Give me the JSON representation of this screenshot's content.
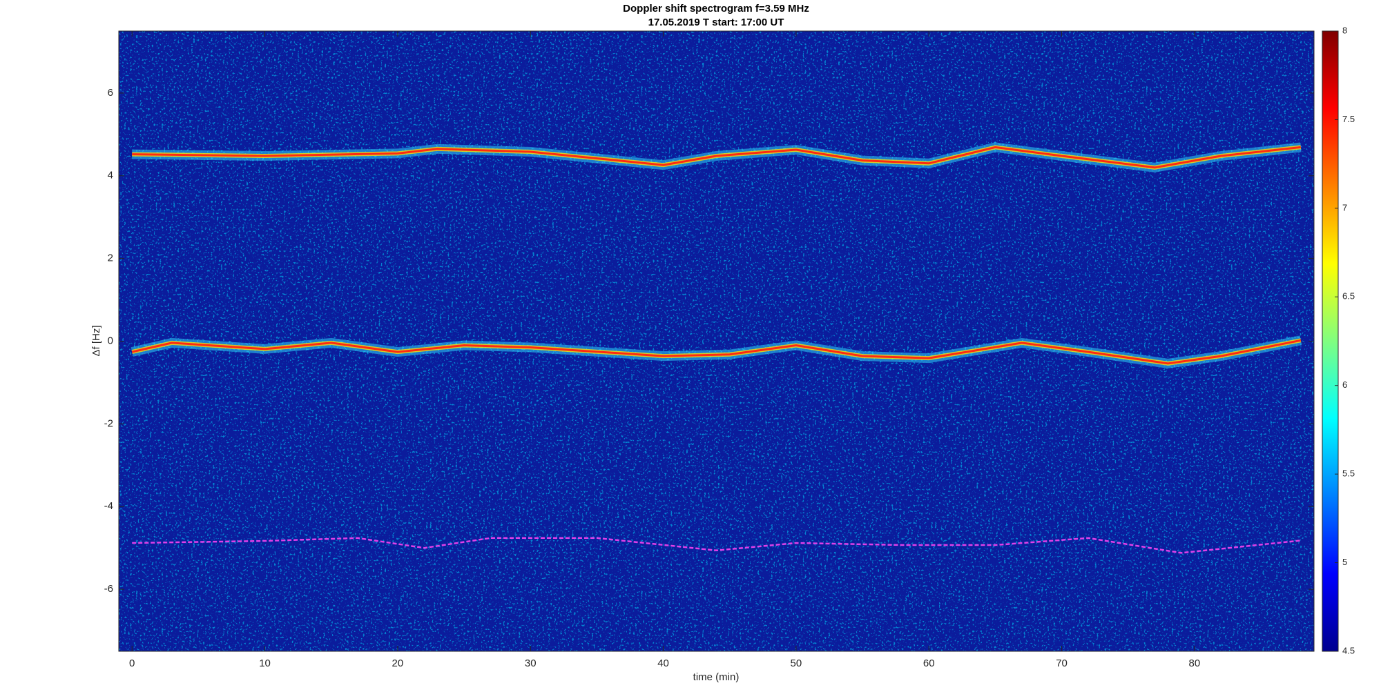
{
  "chart_data": {
    "type": "spectrogram",
    "title": "Doppler shift spectrogram f=3.59 MHz",
    "subtitle": "17.05.2019   T start: 17:00 UT",
    "x_label": "time (min)",
    "y_label": "Δf [Hz]",
    "xlim": [
      -1,
      89
    ],
    "xticks": [
      0,
      10,
      20,
      30,
      40,
      50,
      60,
      70,
      80
    ],
    "ylim": [
      -7.5,
      7.5
    ],
    "yticks": [
      -6,
      -4,
      -2,
      0,
      2,
      4,
      6
    ],
    "background": "#0b1c9c",
    "series": [
      {
        "color": "#ff2a10",
        "x": [
          0,
          10,
          20,
          23,
          30,
          40,
          44,
          50,
          55,
          60,
          65,
          70,
          77,
          82,
          88
        ],
        "values": [
          4.52,
          4.48,
          4.54,
          4.65,
          4.58,
          4.26,
          4.48,
          4.63,
          4.37,
          4.3,
          4.69,
          4.48,
          4.2,
          4.48,
          4.69
        ]
      },
      {
        "color": "#ff2a10",
        "x": [
          0,
          3,
          10,
          15,
          20,
          25,
          30,
          40,
          45,
          50,
          55,
          60,
          67,
          72,
          78,
          82,
          88
        ],
        "values": [
          -0.26,
          -0.04,
          -0.19,
          -0.04,
          -0.26,
          -0.1,
          -0.15,
          -0.36,
          -0.32,
          -0.1,
          -0.36,
          -0.41,
          -0.04,
          -0.26,
          -0.54,
          -0.36,
          0.02
        ]
      },
      {
        "color": "#e040e8",
        "dashed": true,
        "x": [
          0,
          10,
          17,
          22,
          27,
          35,
          44,
          50,
          58,
          65,
          72,
          79,
          88
        ],
        "values": [
          -4.88,
          -4.83,
          -4.76,
          -5.0,
          -4.76,
          -4.76,
          -5.06,
          -4.88,
          -4.93,
          -4.93,
          -4.76,
          -5.12,
          -4.82
        ]
      }
    ],
    "colorbar": {
      "lim": [
        4.5,
        8
      ],
      "ticks": [
        4.5,
        5,
        5.5,
        6,
        6.5,
        7,
        7.5,
        8
      ],
      "colors": [
        "#00008f",
        "#0000ff",
        "#0080ff",
        "#00ffff",
        "#80ff80",
        "#ffff00",
        "#ff8000",
        "#ff0000",
        "#800000"
      ]
    }
  }
}
